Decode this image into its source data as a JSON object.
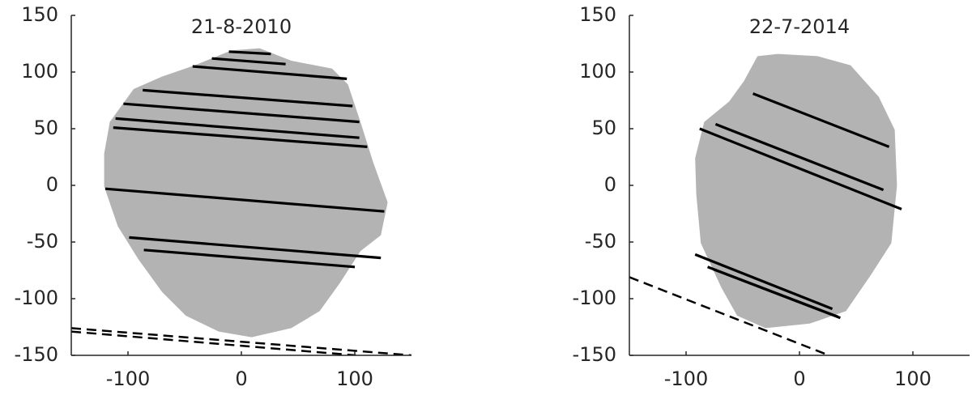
{
  "chart_data": [
    {
      "type": "occultation",
      "title": "21-8-2010",
      "xlim": [
        -150,
        150
      ],
      "ylim": [
        -150,
        150
      ],
      "xticks": [
        -100,
        0,
        100
      ],
      "yticks": [
        -150,
        -100,
        -50,
        0,
        50,
        100,
        150
      ],
      "shape_color": "#b3b3b3",
      "shape": {
        "x": [
          -9,
          16,
          44,
          80,
          94,
          105,
          116,
          129,
          123,
          105,
          87,
          69,
          44,
          9,
          -20,
          -49,
          -70,
          -91,
          -109,
          -121,
          -121,
          -116,
          -95,
          -70,
          -41
        ],
        "y": [
          119,
          121,
          110,
          103,
          89,
          56,
          21,
          -15,
          -44,
          -58,
          -86,
          -111,
          -126,
          -134,
          -129,
          -115,
          -94,
          -65,
          -36,
          -1,
          28,
          56,
          85,
          96,
          106
        ]
      },
      "chords": [
        {
          "x": [
            -11,
            26
          ],
          "y": [
            118,
            116
          ]
        },
        {
          "x": [
            -26,
            39
          ],
          "y": [
            112,
            107
          ]
        },
        {
          "x": [
            -43,
            93
          ],
          "y": [
            105,
            94
          ]
        },
        {
          "x": [
            -87,
            98
          ],
          "y": [
            84,
            70
          ]
        },
        {
          "x": [
            -104,
            104
          ],
          "y": [
            72,
            56
          ]
        },
        {
          "x": [
            -111,
            104
          ],
          "y": [
            59,
            42
          ]
        },
        {
          "x": [
            -113,
            111
          ],
          "y": [
            51,
            34
          ]
        },
        {
          "x": [
            -120,
            126
          ],
          "y": [
            -3,
            -23
          ]
        },
        {
          "x": [
            -99,
            123
          ],
          "y": [
            -46,
            -64
          ]
        },
        {
          "x": [
            -86,
            100
          ],
          "y": [
            -57,
            -72
          ]
        }
      ],
      "dashed": [
        {
          "x": [
            -150,
            150
          ],
          "y": [
            -126,
            -150
          ]
        },
        {
          "x": [
            -150,
            101
          ],
          "y": [
            -129,
            -150
          ]
        }
      ]
    },
    {
      "type": "occultation",
      "title": "22-7-2014",
      "xlim": [
        -150,
        150
      ],
      "ylim": [
        -150,
        150
      ],
      "xticks": [
        -100,
        0,
        100
      ],
      "yticks": [
        -150,
        -100,
        -50,
        0,
        50,
        100,
        150
      ],
      "shape_color": "#b3b3b3",
      "shape": {
        "x": [
          -37,
          -19,
          16,
          45,
          70,
          84,
          86,
          81,
          63,
          41,
          9,
          -30,
          -55,
          -69,
          -87,
          -91,
          -92,
          -84,
          -62,
          -49
        ],
        "y": [
          114,
          116,
          114,
          106,
          78,
          49,
          0,
          -51,
          -79,
          -111,
          -122,
          -126,
          -115,
          -90,
          -51,
          -8,
          24,
          56,
          74,
          92
        ]
      },
      "chords": [
        {
          "x": [
            -41,
            79
          ],
          "y": [
            81,
            34
          ]
        },
        {
          "x": [
            -74,
            74
          ],
          "y": [
            54,
            -4
          ]
        },
        {
          "x": [
            -88,
            90
          ],
          "y": [
            50,
            -21
          ]
        },
        {
          "x": [
            -92,
            29
          ],
          "y": [
            -61,
            -109
          ]
        },
        {
          "x": [
            -81,
            34
          ],
          "y": [
            -72,
            -116
          ]
        },
        {
          "x": [
            -76,
            36
          ],
          "y": [
            -74,
            -117
          ]
        }
      ],
      "dashed": [
        {
          "x": [
            -150,
            26
          ],
          "y": [
            -81,
            -150
          ]
        }
      ]
    }
  ]
}
